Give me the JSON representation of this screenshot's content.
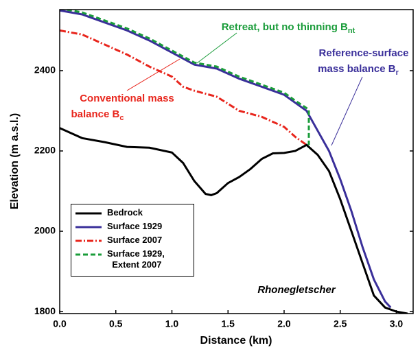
{
  "chart_data": {
    "type": "line",
    "xlabel": "Distance (km)",
    "ylabel": "Elevation (m a.s.l.)",
    "xlim": [
      0,
      3.15
    ],
    "ylim": [
      1795,
      2552
    ],
    "xticks": [
      {
        "value": 0,
        "label": "0.0"
      },
      0.5,
      {
        "value": 1,
        "label": "1.0"
      },
      1.5,
      {
        "value": 2,
        "label": "2.0"
      },
      2.5,
      {
        "value": 3,
        "label": "3.0"
      }
    ],
    "yticks": [
      1800,
      2000,
      2200,
      2400
    ],
    "legend": "lower left",
    "series": [
      {
        "name": "Bedrock",
        "color": "#000000",
        "style": "solid",
        "x": [
          0,
          0.2,
          0.4,
          0.6,
          0.8,
          1.0,
          1.1,
          1.2,
          1.3,
          1.35,
          1.4,
          1.5,
          1.6,
          1.7,
          1.8,
          1.9,
          2.0,
          2.1,
          2.2,
          2.3,
          2.4,
          2.5,
          2.6,
          2.7,
          2.8,
          2.9,
          3.0,
          3.1
        ],
        "values": [
          2257,
          2232,
          2222,
          2210,
          2208,
          2196,
          2170,
          2125,
          2093,
          2090,
          2095,
          2120,
          2135,
          2155,
          2180,
          2194,
          2195,
          2200,
          2215,
          2190,
          2150,
          2080,
          2000,
          1920,
          1840,
          1810,
          1800,
          1795
        ]
      },
      {
        "name": "Surface 1929",
        "color": "#3a2f9a",
        "style": "solid",
        "x": [
          0,
          0.2,
          0.4,
          0.6,
          0.8,
          1.0,
          1.2,
          1.4,
          1.6,
          1.8,
          2.0,
          2.1,
          2.2,
          2.3,
          2.4,
          2.5,
          2.6,
          2.7,
          2.8,
          2.9,
          2.95
        ],
        "values": [
          2550,
          2540,
          2520,
          2500,
          2475,
          2445,
          2415,
          2405,
          2380,
          2360,
          2340,
          2320,
          2300,
          2250,
          2200,
          2130,
          2050,
          1960,
          1880,
          1825,
          1810
        ]
      },
      {
        "name": "Surface 2007",
        "color": "#e8261d",
        "style": "dashdot",
        "x": [
          0,
          0.2,
          0.4,
          0.6,
          0.8,
          1.0,
          1.1,
          1.2,
          1.4,
          1.6,
          1.8,
          2.0,
          2.1,
          2.2
        ],
        "values": [
          2500,
          2490,
          2465,
          2440,
          2410,
          2385,
          2360,
          2350,
          2335,
          2300,
          2285,
          2260,
          2235,
          2215
        ]
      },
      {
        "name": "Surface 1929,\n  Extent 2007",
        "color": "#1a9c3a",
        "style": "dashed",
        "x": [
          0,
          0.2,
          0.4,
          0.6,
          0.8,
          1.0,
          1.2,
          1.4,
          1.6,
          1.8,
          2.0,
          2.1,
          2.22,
          2.22
        ],
        "values": [
          2555,
          2545,
          2525,
          2505,
          2480,
          2450,
          2420,
          2410,
          2385,
          2365,
          2345,
          2325,
          2303,
          2215
        ]
      }
    ],
    "annotations": [
      {
        "lines": [
          "Retreat, but no thinning B"
        ],
        "subscript": "nt",
        "color": "#1a9c3a"
      },
      {
        "lines": [
          "Reference-surface",
          "mass balance B"
        ],
        "subscript": "r",
        "color": "#3a2f9a"
      },
      {
        "lines": [
          "Conventional mass",
          "balance B"
        ],
        "subscript": "c",
        "color": "#e8261d"
      }
    ],
    "label": "Rhonegletscher"
  }
}
